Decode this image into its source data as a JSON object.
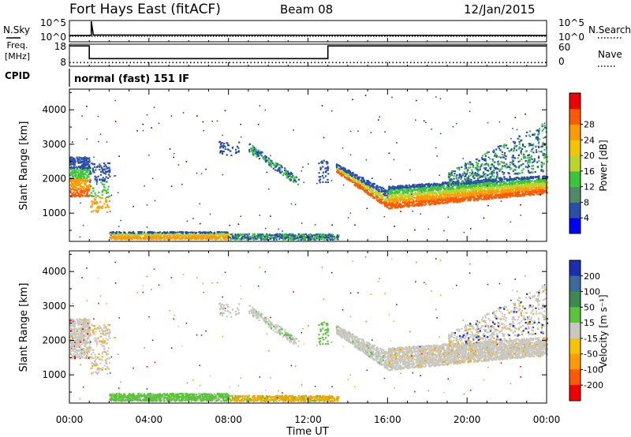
{
  "header": {
    "title": "Fort Hays East (fitACF)",
    "beam": "Beam 08",
    "date": "12/Jan/2015",
    "left_labels": [
      "N.Sky",
      "Freq.",
      "[MHz]",
      "CPID"
    ],
    "right_labels": [
      "N.Search",
      "Nave"
    ],
    "cpid_text": "normal (fast) 151 IF"
  },
  "chart_data": [
    {
      "type": "line",
      "title": "N.Sky / N.Search",
      "yticks_left": [
        "10^5",
        "10^0"
      ],
      "yticks_right": [
        "10^5",
        "10^0"
      ],
      "series": [
        {
          "name": "N.Sky",
          "x": [
            0,
            1.1,
            1.1,
            1.2,
            24
          ],
          "values": [
            1.5,
            1.5,
            4.8,
            1.6,
            1.5
          ]
        },
        {
          "name": "N.Search",
          "x": [
            0,
            24
          ],
          "values": [
            1.3,
            1.3
          ]
        }
      ]
    },
    {
      "type": "line",
      "title": "Frequency / Nave",
      "yticks_left": [
        "18",
        "8"
      ],
      "yticks_right": [
        "60",
        "0"
      ],
      "series": [
        {
          "name": "Freq.",
          "x": [
            0,
            1.0,
            1.0,
            13.0,
            13.0,
            24
          ],
          "values": [
            18,
            18,
            10.5,
            10.5,
            18,
            18
          ]
        },
        {
          "name": "Nave",
          "x": [
            0,
            24
          ],
          "values": [
            8.2,
            8.2
          ]
        }
      ]
    },
    {
      "type": "heatmap",
      "title": "Power",
      "xlabel": "",
      "ylabel": "Slant Range [km]",
      "xlim": [
        0,
        24
      ],
      "ylim": [
        180,
        4600
      ],
      "yticks": [
        1000,
        2000,
        3000,
        4000
      ],
      "colorbar": {
        "label": "Power [dB]",
        "ticks": [
          "4",
          "8",
          "12",
          "16",
          "20",
          "24",
          "28"
        ],
        "colors": [
          "#0000ff",
          "#2a4fa6",
          "#4f8a6b",
          "#3cc43c",
          "#b9d42a",
          "#f5c400",
          "#ff9a00",
          "#ff5a00",
          "#f00000"
        ]
      }
    },
    {
      "type": "heatmap",
      "title": "Velocity",
      "xlabel": "Time UT",
      "ylabel": "Slant Range [km]",
      "xlim": [
        0,
        24
      ],
      "ylim": [
        180,
        4600
      ],
      "yticks": [
        1000,
        2000,
        3000,
        4000
      ],
      "xticks": [
        "00:00",
        "04:00",
        "08:00",
        "12:00",
        "16:00",
        "20:00",
        "00:00"
      ],
      "colorbar": {
        "label": "Velocity [m s⁻¹]",
        "ticks": [
          "200",
          "100",
          "50",
          "15",
          "-15",
          "-50",
          "-100",
          "-200"
        ],
        "colors": [
          "#1b2fb0",
          "#3c6a9a",
          "#3c8a4f",
          "#5cc43c",
          "#c8c8c0",
          "#f5c400",
          "#ff9a00",
          "#ff5a00",
          "#f00000"
        ]
      }
    }
  ]
}
